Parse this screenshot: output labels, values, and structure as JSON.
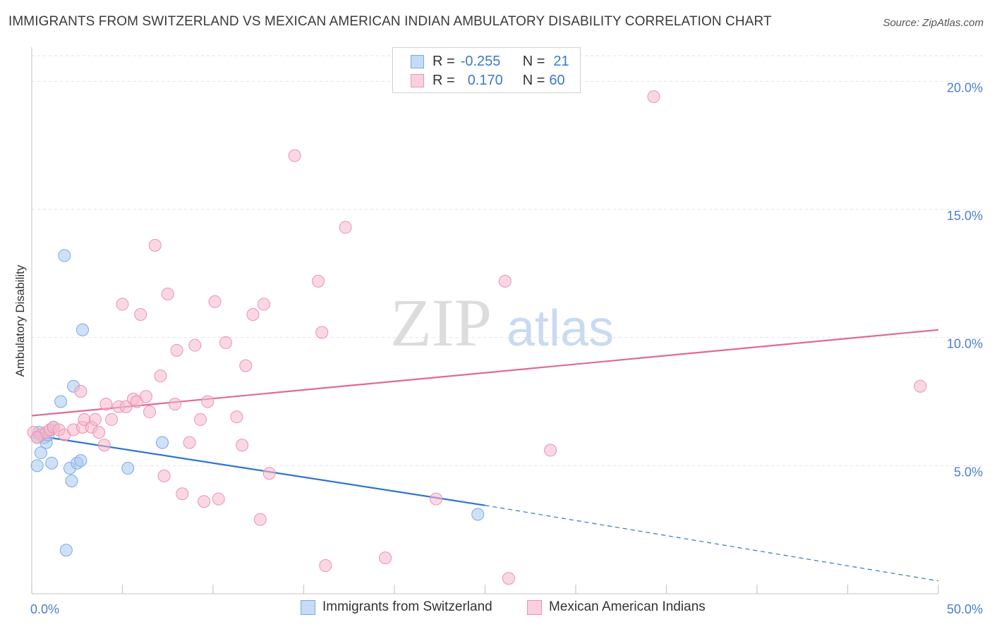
{
  "header": {
    "title": "IMMIGRANTS FROM SWITZERLAND VS MEXICAN AMERICAN INDIAN AMBULATORY DISABILITY CORRELATION CHART",
    "source": "Source: ZipAtlas.com"
  },
  "watermark": {
    "zip": "ZIP",
    "atlas": "atlas"
  },
  "stats": [
    {
      "r_label": "R =",
      "r_value": "-0.255",
      "n_label": "N =",
      "n_value": "21",
      "color": "#a8c8f0"
    },
    {
      "r_label": "R =",
      "r_value": "0.170",
      "n_label": "N =",
      "n_value": "60",
      "color": "#f5b8cc"
    }
  ],
  "legend": [
    {
      "label": "Immigrants from Switzerland",
      "color": "#a8c8f0"
    },
    {
      "label": "Mexican American Indians",
      "color": "#f5b8cc"
    }
  ],
  "chart_data": {
    "type": "scatter",
    "xlabel": "",
    "ylabel": "Ambulatory Disability",
    "xlim": [
      0,
      50
    ],
    "ylim": [
      0,
      21
    ],
    "x_tick_labels": [
      "0.0%",
      "50.0%"
    ],
    "y_ticks": [
      5,
      10,
      15,
      20
    ],
    "y_tick_labels": [
      "5.0%",
      "10.0%",
      "15.0%",
      "20.0%"
    ],
    "grid": true,
    "legend_position": "bottom",
    "series": [
      {
        "name": "Immigrants from Switzerland",
        "color": "#a8c8f0",
        "line_color": "#2f74d0",
        "points": [
          [
            0.3,
            6.1
          ],
          [
            0.3,
            5.0
          ],
          [
            0.5,
            5.5
          ],
          [
            0.7,
            6.1
          ],
          [
            0.8,
            5.9
          ],
          [
            0.9,
            6.2
          ],
          [
            1.1,
            5.1
          ],
          [
            1.2,
            6.5
          ],
          [
            1.6,
            7.5
          ],
          [
            1.8,
            13.2
          ],
          [
            1.9,
            1.7
          ],
          [
            2.1,
            4.9
          ],
          [
            2.2,
            4.4
          ],
          [
            2.3,
            8.1
          ],
          [
            2.5,
            5.1
          ],
          [
            2.7,
            5.2
          ],
          [
            2.8,
            10.3
          ],
          [
            5.3,
            4.9
          ],
          [
            7.2,
            5.9
          ],
          [
            24.6,
            3.1
          ],
          [
            0.4,
            6.3
          ]
        ],
        "trend": {
          "x": [
            0,
            25
          ],
          "y": [
            6.2,
            3.45
          ]
        },
        "trend_dashed": {
          "x": [
            25,
            50
          ],
          "y": [
            3.45,
            0.5
          ]
        }
      },
      {
        "name": "Mexican American Indians",
        "color": "#f5b8cc",
        "line_color": "#e06a93",
        "points": [
          [
            0.1,
            6.3
          ],
          [
            0.5,
            6.2
          ],
          [
            0.8,
            6.3
          ],
          [
            1.0,
            6.4
          ],
          [
            1.2,
            6.5
          ],
          [
            1.5,
            6.4
          ],
          [
            1.8,
            6.2
          ],
          [
            2.3,
            6.4
          ],
          [
            2.7,
            7.9
          ],
          [
            2.8,
            6.5
          ],
          [
            2.9,
            6.8
          ],
          [
            3.3,
            6.5
          ],
          [
            3.5,
            6.8
          ],
          [
            3.7,
            6.3
          ],
          [
            4.0,
            5.8
          ],
          [
            4.1,
            7.4
          ],
          [
            4.4,
            6.8
          ],
          [
            4.8,
            7.3
          ],
          [
            5.0,
            11.3
          ],
          [
            5.2,
            7.3
          ],
          [
            5.6,
            7.6
          ],
          [
            5.8,
            7.5
          ],
          [
            6.0,
            10.9
          ],
          [
            6.3,
            7.7
          ],
          [
            6.5,
            7.1
          ],
          [
            6.8,
            13.6
          ],
          [
            7.1,
            8.5
          ],
          [
            7.3,
            4.6
          ],
          [
            7.5,
            11.7
          ],
          [
            7.9,
            7.4
          ],
          [
            8.0,
            9.5
          ],
          [
            8.3,
            3.9
          ],
          [
            8.7,
            5.9
          ],
          [
            9.0,
            9.7
          ],
          [
            9.3,
            6.8
          ],
          [
            9.5,
            3.6
          ],
          [
            9.7,
            7.5
          ],
          [
            10.1,
            11.4
          ],
          [
            10.3,
            3.7
          ],
          [
            10.7,
            9.8
          ],
          [
            11.3,
            6.9
          ],
          [
            11.6,
            5.8
          ],
          [
            11.8,
            8.9
          ],
          [
            12.2,
            10.9
          ],
          [
            12.6,
            2.9
          ],
          [
            12.8,
            11.3
          ],
          [
            13.1,
            4.7
          ],
          [
            14.5,
            17.1
          ],
          [
            15.8,
            12.2
          ],
          [
            16.0,
            10.2
          ],
          [
            16.2,
            1.1
          ],
          [
            17.3,
            14.3
          ],
          [
            19.5,
            1.4
          ],
          [
            22.3,
            3.7
          ],
          [
            26.1,
            12.2
          ],
          [
            26.3,
            0.6
          ],
          [
            28.6,
            5.6
          ],
          [
            34.3,
            19.4
          ],
          [
            49.0,
            8.1
          ],
          [
            0.3,
            6.1
          ]
        ],
        "trend": {
          "x": [
            0,
            50
          ],
          "y": [
            6.95,
            10.3
          ]
        }
      }
    ]
  }
}
